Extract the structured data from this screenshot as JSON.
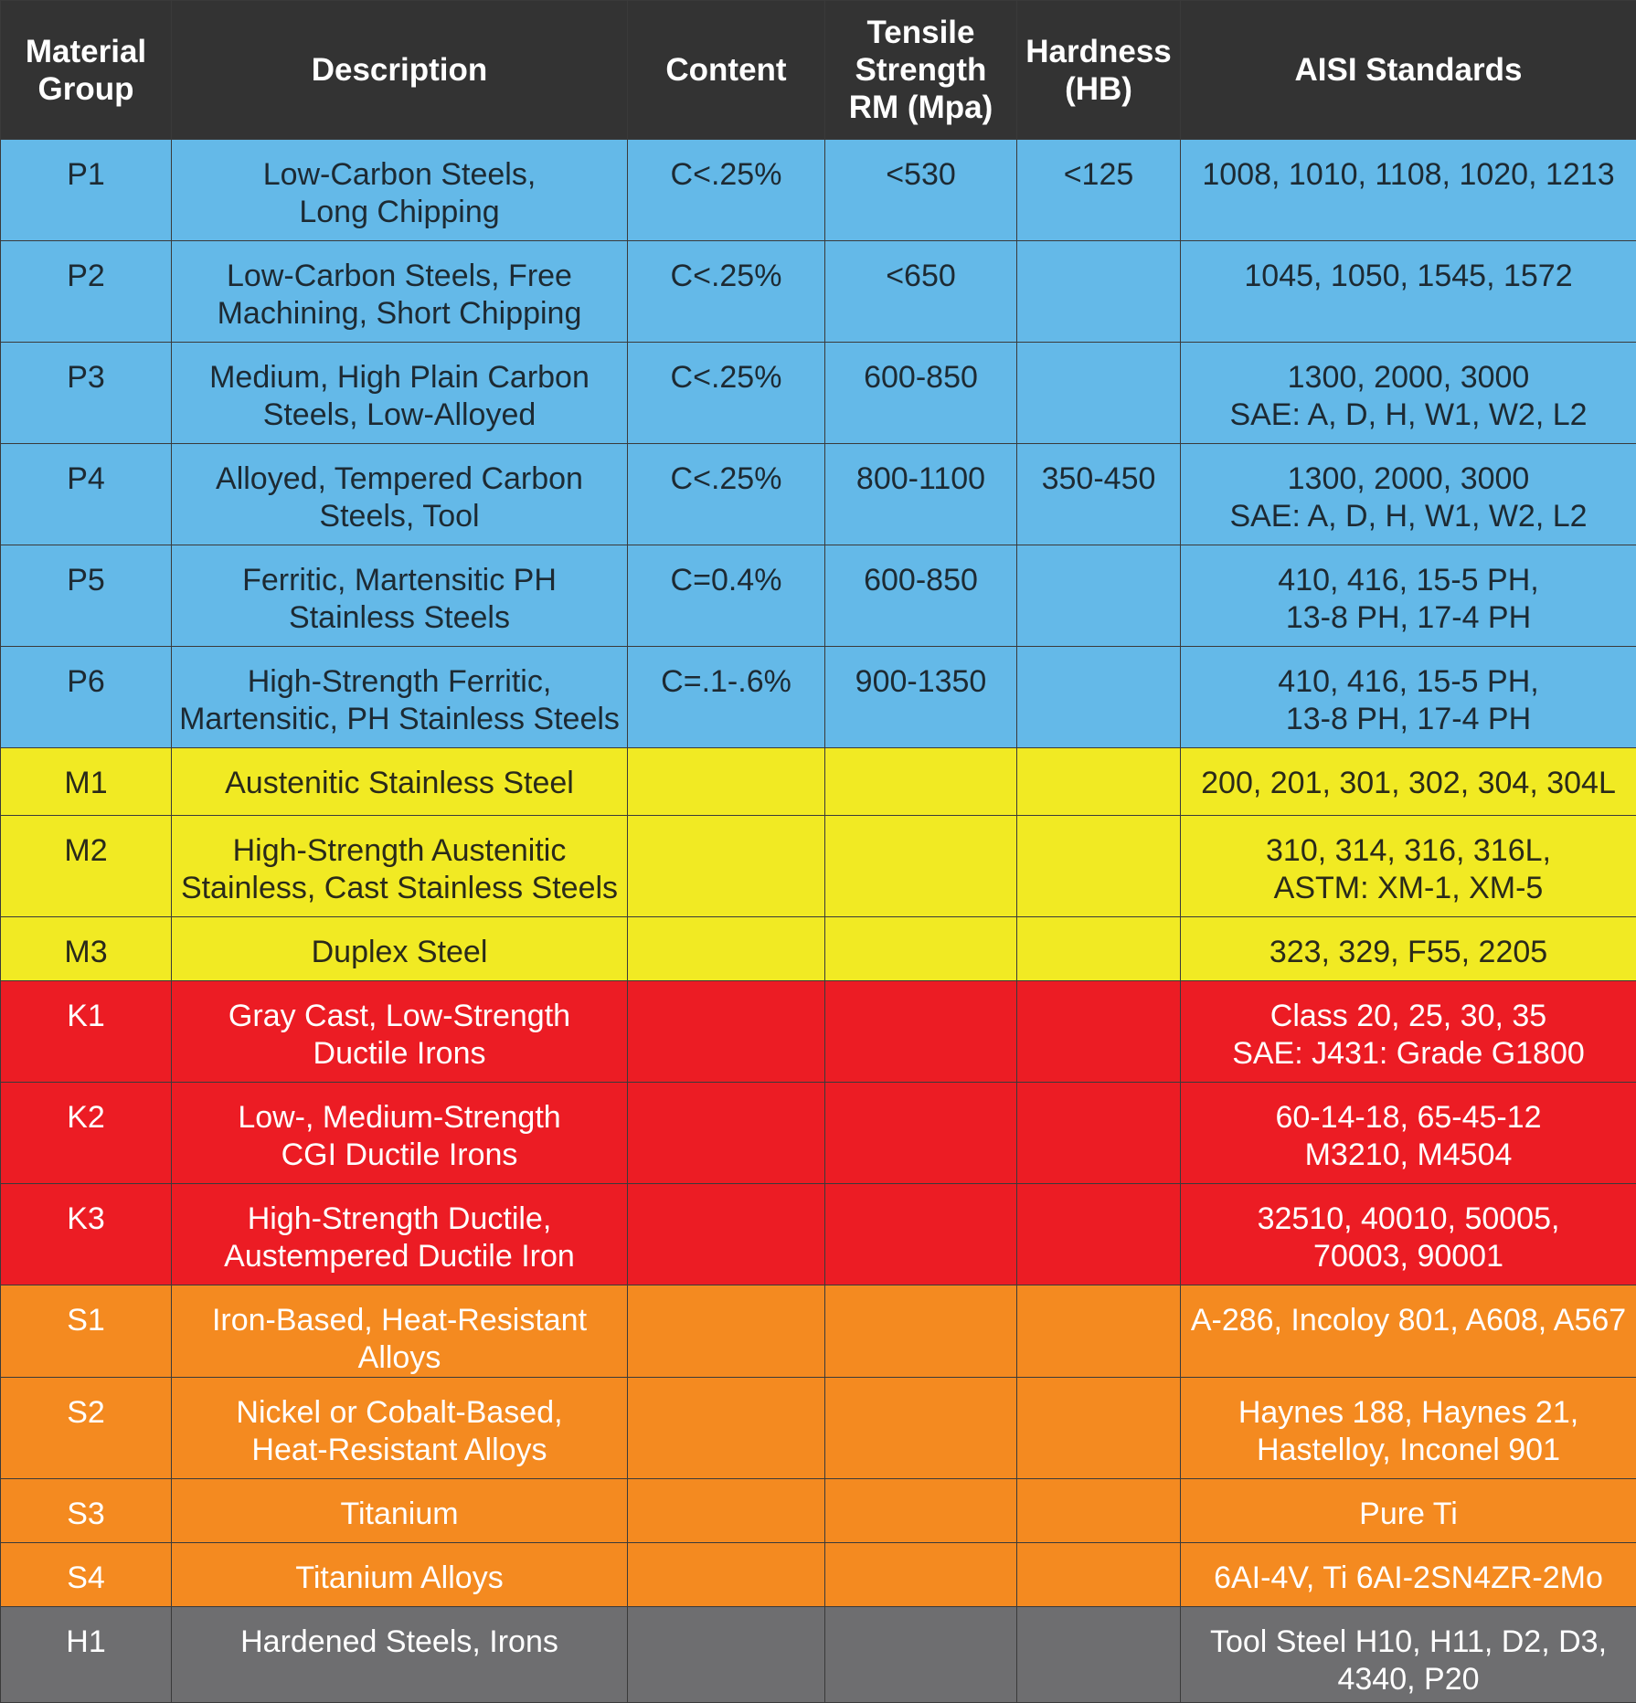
{
  "header": {
    "material_group": "Material\nGroup",
    "description": "Description",
    "content": "Content",
    "tensile_strength": "Tensile\nStrength\nRM (Mpa)",
    "hardness": "Hardness\n(HB)",
    "aisi_standards": "AISI Standards"
  },
  "colors": {
    "header_bg": "#333333",
    "P": "#64b9e8",
    "M": "#f1ea23",
    "K": "#ec1c24",
    "S": "#f48a20",
    "H": "#6e6e70"
  },
  "rows": [
    {
      "group": "P1",
      "description": "Low-Carbon Steels,\nLong Chipping",
      "content": "C<.25%",
      "tensile": "<530",
      "hardness": "<125",
      "aisi": "1008, 1010, 1108, 1020, 1213"
    },
    {
      "group": "P2",
      "description": "Low-Carbon Steels, Free\nMachining, Short Chipping",
      "content": "C<.25%",
      "tensile": "<650",
      "hardness": "",
      "aisi": "1045, 1050, 1545, 1572"
    },
    {
      "group": "P3",
      "description": "Medium, High Plain Carbon\nSteels, Low-Alloyed",
      "content": "C<.25%",
      "tensile": "600-850",
      "hardness": "",
      "aisi": "1300, 2000, 3000\nSAE: A, D, H, W1, W2, L2"
    },
    {
      "group": "P4",
      "description": "Alloyed, Tempered Carbon\nSteels, Tool",
      "content": "C<.25%",
      "tensile": "800-1100",
      "hardness": "350-450",
      "aisi": "1300, 2000, 3000\nSAE: A, D, H, W1, W2, L2"
    },
    {
      "group": "P5",
      "description": "Ferritic, Martensitic PH\nStainless Steels",
      "content": "C=0.4%",
      "tensile": "600-850",
      "hardness": "",
      "aisi": "410, 416, 15-5 PH,\n13-8 PH, 17-4 PH"
    },
    {
      "group": "P6",
      "description": "High-Strength Ferritic,\nMartensitic, PH Stainless Steels",
      "content": "C=.1-.6%",
      "tensile": "900-1350",
      "hardness": "",
      "aisi": "410, 416, 15-5 PH,\n13-8 PH, 17-4 PH"
    },
    {
      "group": "M1",
      "description": "Austenitic Stainless Steel",
      "content": "",
      "tensile": "",
      "hardness": "",
      "aisi": "200, 201, 301, 302, 304, 304L"
    },
    {
      "group": "M2",
      "description": "High-Strength Austenitic\nStainless, Cast Stainless Steels",
      "content": "",
      "tensile": "",
      "hardness": "",
      "aisi": "310, 314, 316, 316L,\nASTM: XM-1, XM-5"
    },
    {
      "group": "M3",
      "description": "Duplex Steel",
      "content": "",
      "tensile": "",
      "hardness": "",
      "aisi": "323, 329, F55, 2205"
    },
    {
      "group": "K1",
      "description": "Gray Cast, Low-Strength\nDuctile Irons",
      "content": "",
      "tensile": "",
      "hardness": "",
      "aisi": "Class 20, 25, 30, 35\nSAE: J431: Grade G1800"
    },
    {
      "group": "K2",
      "description": "Low-, Medium-Strength\nCGI Ductile Irons",
      "content": "",
      "tensile": "",
      "hardness": "",
      "aisi": "60-14-18, 65-45-12\nM3210, M4504"
    },
    {
      "group": "K3",
      "description": "High-Strength Ductile,\nAustempered Ductile Iron",
      "content": "",
      "tensile": "",
      "hardness": "",
      "aisi": "32510, 40010, 50005,\n70003, 90001"
    },
    {
      "group": "S1",
      "description": "Iron-Based, Heat-Resistant Alloys",
      "content": "",
      "tensile": "",
      "hardness": "",
      "aisi": "A-286, Incoloy 801, A608, A567"
    },
    {
      "group": "S2",
      "description": "Nickel or Cobalt-Based,\nHeat-Resistant Alloys",
      "content": "",
      "tensile": "",
      "hardness": "",
      "aisi": "Haynes 188, Haynes 21,\nHastelloy, Inconel 901"
    },
    {
      "group": "S3",
      "description": "Titanium",
      "content": "",
      "tensile": "",
      "hardness": "",
      "aisi": "Pure Ti"
    },
    {
      "group": "S4",
      "description": "Titanium Alloys",
      "content": "",
      "tensile": "",
      "hardness": "",
      "aisi": "6AI-4V, Ti 6AI-2SN4ZR-2Mo"
    },
    {
      "group": "H1",
      "description": "Hardened Steels, Irons",
      "content": "",
      "tensile": "",
      "hardness": "",
      "aisi": "Tool Steel H10, H11, D2, D3,\n4340, P20"
    }
  ]
}
